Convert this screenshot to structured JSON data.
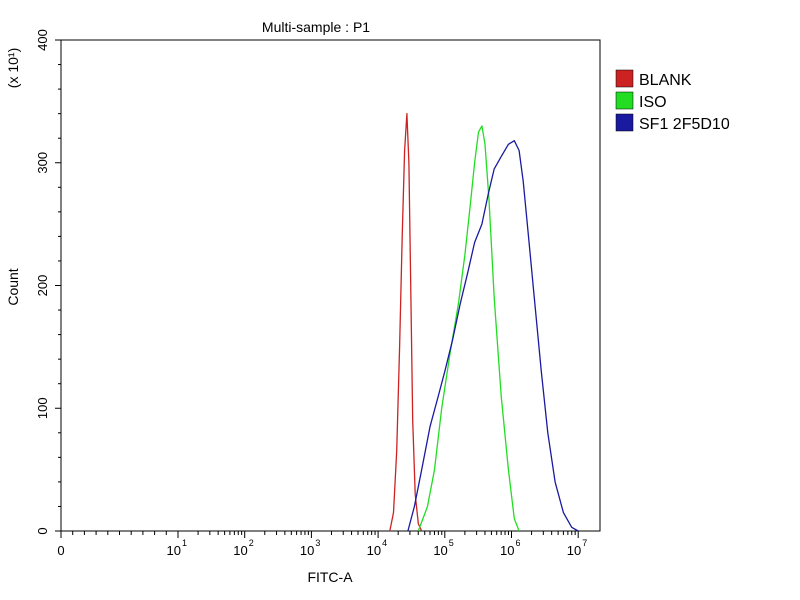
{
  "chart_data": {
    "type": "line",
    "title": "Multi-sample : P1",
    "xlabel": "FITC-A",
    "ylabel": "Count",
    "y_multiplier_label": "(x 10¹)",
    "xscale": "log",
    "ylim": [
      0,
      400
    ],
    "legend_position": "right",
    "grid": false,
    "x_ticks": [
      {
        "value": 0,
        "label": "0"
      },
      {
        "value": 10,
        "base": "10",
        "exp": "1"
      },
      {
        "value": 100,
        "base": "10",
        "exp": "2"
      },
      {
        "value": 1000,
        "base": "10",
        "exp": "3"
      },
      {
        "value": 10000,
        "base": "10",
        "exp": "4"
      },
      {
        "value": 100000,
        "base": "10",
        "exp": "5"
      },
      {
        "value": 1000000,
        "base": "10",
        "exp": "6"
      },
      {
        "value": 10000000,
        "base": "10",
        "exp": "7"
      }
    ],
    "y_ticks": [
      0,
      100,
      200,
      300,
      400
    ],
    "series": [
      {
        "name": "BLANK",
        "color": "#cc2222",
        "x": [
          15000,
          17000,
          19000,
          21000,
          23000,
          25000,
          27000,
          29000,
          31000,
          33000,
          36000,
          40000,
          45000
        ],
        "y": [
          0,
          15,
          65,
          150,
          240,
          310,
          340,
          300,
          190,
          90,
          30,
          6,
          0
        ]
      },
      {
        "name": "ISO",
        "color": "#22dd22",
        "x": [
          40000,
          55000,
          70000,
          90000,
          120000,
          160000,
          200000,
          240000,
          280000,
          320000,
          360000,
          400000,
          460000,
          550000,
          700000,
          900000,
          1100000,
          1300000
        ],
        "y": [
          0,
          20,
          50,
          100,
          145,
          185,
          225,
          265,
          300,
          325,
          330,
          315,
          270,
          190,
          110,
          50,
          10,
          0
        ]
      },
      {
        "name": "SF1 2F5D10",
        "color": "#1a1aa0",
        "x": [
          28000,
          35000,
          45000,
          60000,
          80000,
          100000,
          130000,
          170000,
          220000,
          280000,
          360000,
          450000,
          550000,
          700000,
          900000,
          1100000,
          1300000,
          1500000,
          1800000,
          2200000,
          2800000,
          3500000,
          4500000,
          6000000,
          8000000,
          10000000
        ],
        "y": [
          0,
          20,
          50,
          85,
          110,
          130,
          155,
          185,
          210,
          235,
          250,
          275,
          295,
          305,
          315,
          318,
          310,
          285,
          240,
          190,
          130,
          80,
          40,
          15,
          3,
          0
        ]
      }
    ]
  }
}
